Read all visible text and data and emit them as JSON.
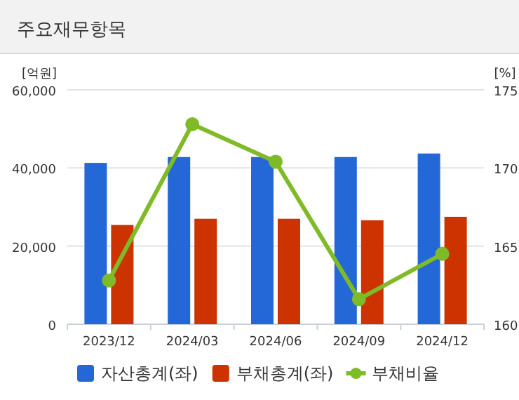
{
  "chart_data": {
    "type": "bar",
    "title": "주요재무항목",
    "ylabel": "[억원]",
    "y2label": "[%]",
    "categories": [
      "2023/12",
      "2024/03",
      "2024/06",
      "2024/09",
      "2024/12"
    ],
    "series": [
      {
        "name": "자산총계(좌)",
        "color": "#2468d8",
        "values": [
          41300,
          42800,
          42800,
          42800,
          43700
        ]
      },
      {
        "name": "부채총계(좌)",
        "color": "#cc3300",
        "values": [
          25400,
          27000,
          27000,
          26600,
          27500
        ]
      },
      {
        "name": "부채비율",
        "type": "line",
        "axis": "y2",
        "color": "#7fba27",
        "marker": "circle",
        "values": [
          162.8,
          172.8,
          170.4,
          161.6,
          164.5
        ]
      }
    ],
    "ylim": [
      0,
      60000
    ],
    "yticks": [
      {
        "value": 0,
        "label": "0"
      },
      {
        "value": 20000,
        "label": "20,000"
      },
      {
        "value": 40000,
        "label": "40,000"
      },
      {
        "value": 60000,
        "label": "60,000"
      }
    ],
    "y2lim": [
      160,
      175
    ],
    "y2ticks": [
      160,
      165,
      170,
      175
    ],
    "grid": "y",
    "legend": "bottom"
  }
}
